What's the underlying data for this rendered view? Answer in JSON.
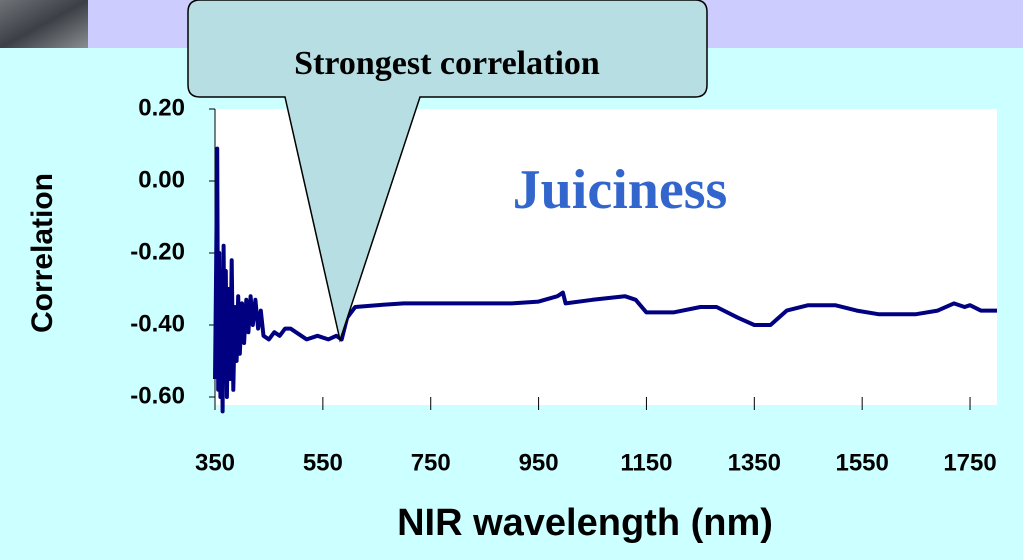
{
  "chart_data": {
    "type": "line",
    "annotation": "Strongest correlation",
    "title": "Juiciness",
    "ylabel": "Correlation",
    "xlabel": "NIR wavelength (nm)",
    "color": "#000080",
    "xlim": [
      350,
      1800
    ],
    "ylim": [
      -0.6,
      0.2
    ],
    "xticks": [
      350,
      550,
      750,
      950,
      1150,
      1350,
      1550,
      1750
    ],
    "yticks": [
      {
        "value": 0.2,
        "label": "0.20"
      },
      {
        "value": 0,
        "label": "0.00"
      },
      {
        "value": -0.2,
        "label": "-0.20"
      },
      {
        "value": -0.4,
        "label": "-0.40"
      },
      {
        "value": -0.6,
        "label": "-0.60"
      }
    ],
    "x": [
      350,
      352,
      354,
      356,
      358,
      360,
      362,
      364,
      366,
      368,
      370,
      372,
      375,
      378,
      381,
      384,
      387,
      390,
      393,
      396,
      400,
      404,
      408,
      412,
      416,
      420,
      425,
      430,
      435,
      440,
      450,
      460,
      470,
      480,
      490,
      500,
      520,
      540,
      560,
      575,
      585,
      595,
      610,
      650,
      700,
      800,
      900,
      950,
      985,
      995,
      1000,
      1050,
      1080,
      1110,
      1130,
      1150,
      1200,
      1250,
      1280,
      1320,
      1350,
      1380,
      1410,
      1450,
      1500,
      1540,
      1580,
      1650,
      1690,
      1720,
      1740,
      1750,
      1770,
      1800
    ],
    "values": [
      -0.55,
      -0.25,
      0.09,
      -0.58,
      -0.2,
      -0.6,
      -0.3,
      -0.64,
      -0.18,
      -0.55,
      -0.25,
      -0.6,
      -0.3,
      -0.55,
      -0.22,
      -0.58,
      -0.35,
      -0.5,
      -0.32,
      -0.48,
      -0.34,
      -0.45,
      -0.33,
      -0.42,
      -0.32,
      -0.4,
      -0.33,
      -0.41,
      -0.36,
      -0.43,
      -0.44,
      -0.42,
      -0.43,
      -0.41,
      -0.41,
      -0.42,
      -0.44,
      -0.43,
      -0.44,
      -0.43,
      -0.44,
      -0.38,
      -0.35,
      -0.345,
      -0.34,
      -0.34,
      -0.34,
      -0.335,
      -0.32,
      -0.31,
      -0.34,
      -0.33,
      -0.325,
      -0.32,
      -0.33,
      -0.365,
      -0.365,
      -0.35,
      -0.35,
      -0.38,
      -0.4,
      -0.4,
      -0.36,
      -0.345,
      -0.345,
      -0.36,
      -0.37,
      -0.37,
      -0.36,
      -0.34,
      -0.35,
      -0.345,
      -0.36,
      -0.36
    ]
  }
}
